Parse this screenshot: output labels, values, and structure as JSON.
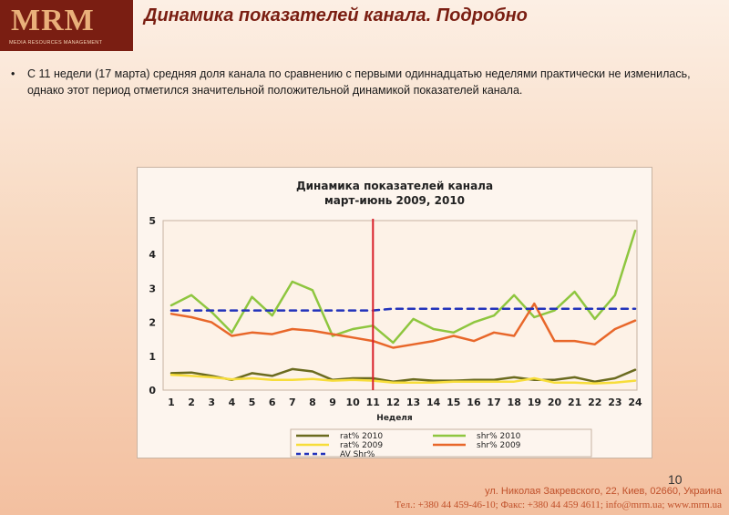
{
  "logo": {
    "mark": "MRM",
    "sub": "MEDIA RESOURCES MANAGEMENT"
  },
  "title": "Динамика показателей канала. Подробно",
  "bullet": "С 11 недели (17 марта)  средняя доля канала по сравнению с первыми одиннадцатью неделями практически не изменилась, однако этот период отметился значительной положительной динамикой показателей канала.",
  "page_number": "10",
  "footer": {
    "address": "ул. Николая Закревского, 22,  Киев, 02660, Украина",
    "contacts": "Тел.: +380 44 459-46-10; Факс: +380 44 459 4611; info@mrm.ua; www.mrm.ua"
  },
  "chart_data": {
    "type": "line",
    "title": "Динамика показателей канала",
    "subtitle": "март-июнь 2009, 2010",
    "xlabel": "Неделя",
    "x": [
      1,
      2,
      3,
      4,
      5,
      6,
      7,
      8,
      9,
      10,
      11,
      12,
      13,
      14,
      15,
      16,
      17,
      18,
      19,
      20,
      21,
      22,
      23,
      24
    ],
    "ylim": [
      0,
      5
    ],
    "yticks": [
      0,
      1,
      2,
      3,
      4,
      5
    ],
    "grid": false,
    "legend": "bottom",
    "marker_week": 11,
    "series": [
      {
        "name": "rat% 2010",
        "color": "#6b6b1f",
        "style": "solid",
        "values": [
          0.5,
          0.52,
          0.42,
          0.3,
          0.5,
          0.42,
          0.62,
          0.55,
          0.3,
          0.35,
          0.35,
          0.25,
          0.32,
          0.28,
          0.28,
          0.3,
          0.3,
          0.38,
          0.3,
          0.3,
          0.38,
          0.25,
          0.35,
          0.6
        ]
      },
      {
        "name": "shr% 2010",
        "color": "#8ec63f",
        "style": "solid",
        "values": [
          2.5,
          2.8,
          2.3,
          1.7,
          2.75,
          2.2,
          3.2,
          2.95,
          1.6,
          1.8,
          1.9,
          1.4,
          2.1,
          1.8,
          1.7,
          2.0,
          2.2,
          2.8,
          2.15,
          2.35,
          2.9,
          2.1,
          2.8,
          4.7
        ]
      },
      {
        "name": "rat% 2009",
        "color": "#f7dd3a",
        "style": "solid",
        "values": [
          0.45,
          0.42,
          0.38,
          0.32,
          0.35,
          0.3,
          0.3,
          0.33,
          0.28,
          0.3,
          0.28,
          0.22,
          0.22,
          0.22,
          0.25,
          0.25,
          0.25,
          0.25,
          0.35,
          0.22,
          0.22,
          0.2,
          0.22,
          0.28
        ]
      },
      {
        "name": "shr% 2009",
        "color": "#e8672a",
        "style": "solid",
        "values": [
          2.25,
          2.15,
          2.0,
          1.6,
          1.7,
          1.65,
          1.8,
          1.75,
          1.65,
          1.55,
          1.45,
          1.25,
          1.35,
          1.45,
          1.6,
          1.45,
          1.7,
          1.6,
          2.55,
          1.45,
          1.45,
          1.35,
          1.8,
          2.05
        ]
      },
      {
        "name": "AV Shr%",
        "color": "#2233bb",
        "style": "dashed",
        "values": [
          2.35,
          2.35,
          2.35,
          2.35,
          2.35,
          2.35,
          2.35,
          2.35,
          2.35,
          2.35,
          2.35,
          2.4,
          2.4,
          2.4,
          2.4,
          2.4,
          2.4,
          2.4,
          2.4,
          2.4,
          2.4,
          2.4,
          2.4,
          2.4
        ]
      }
    ]
  }
}
